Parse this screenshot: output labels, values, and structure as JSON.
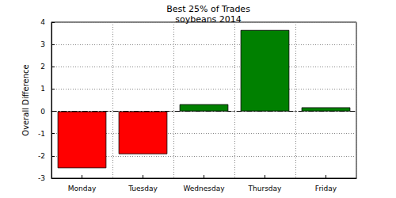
{
  "chart_data": {
    "type": "bar",
    "title": "Best 25% of Trades",
    "subtitle": "soybeans 2014",
    "y_label": "Overall Difference",
    "categories": [
      "Monday",
      "Tuesday",
      "Wednesday",
      "Thursday",
      "Friday"
    ],
    "values": [
      -2.55,
      -1.92,
      0.32,
      3.65,
      0.18
    ],
    "colors": [
      "#ff0000",
      "#ff0000",
      "#008000",
      "#008000",
      "#008000"
    ],
    "ylim": [
      -3,
      4
    ],
    "yticks": [
      -3,
      -2,
      -1,
      0,
      1,
      2,
      3,
      4
    ],
    "grid": true
  }
}
